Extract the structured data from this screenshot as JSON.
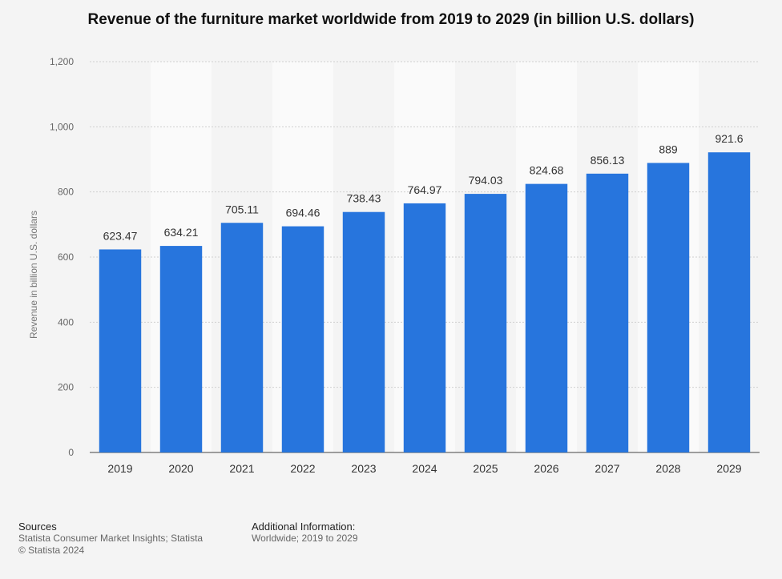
{
  "chart_data": {
    "type": "bar",
    "title": "Revenue of the furniture market worldwide from 2019 to 2029 (in billion U.S. dollars)",
    "xlabel": "",
    "ylabel": "Revenue in billion U.S. dollars",
    "categories": [
      "2019",
      "2020",
      "2021",
      "2022",
      "2023",
      "2024",
      "2025",
      "2026",
      "2027",
      "2028",
      "2029"
    ],
    "values": [
      623.47,
      634.21,
      705.11,
      694.46,
      738.43,
      764.97,
      794.03,
      824.68,
      856.13,
      889,
      921.6
    ],
    "data_labels": [
      "623.47",
      "634.21",
      "705.11",
      "694.46",
      "738.43",
      "764.97",
      "794.03",
      "824.68",
      "856.13",
      "889",
      "921.6"
    ],
    "yticks": [
      0,
      200,
      400,
      600,
      800,
      1000,
      1200
    ],
    "ytick_labels": [
      "0",
      "200",
      "400",
      "600",
      "800",
      "1,000",
      "1,200"
    ],
    "ylim": [
      0,
      1200
    ],
    "grid": true,
    "legend": "none",
    "bar_color": "#2775dd"
  },
  "footer": {
    "sources_heading": "Sources",
    "sources_text": "Statista Consumer Market Insights; Statista",
    "copyright": "© Statista 2024",
    "additional_heading": "Additional Information:",
    "additional_text": "Worldwide; 2019 to 2029"
  }
}
